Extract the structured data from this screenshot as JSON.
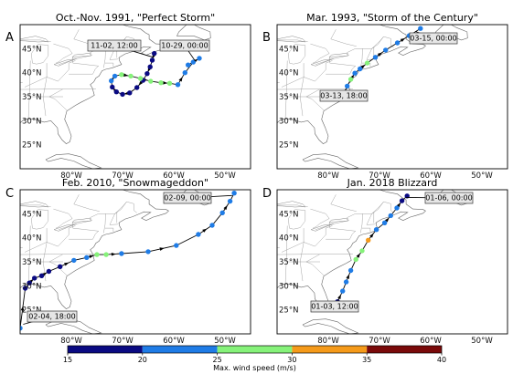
{
  "figure": {
    "colorbar": {
      "label": "Max. wind speed (m/s)",
      "ticks": [
        "15",
        "20",
        "25",
        "30",
        "35",
        "40"
      ],
      "bins": [
        {
          "range": [
            15,
            20
          ],
          "color": "#0a0a82"
        },
        {
          "range": [
            20,
            25
          ],
          "color": "#1f7ce6"
        },
        {
          "range": [
            25,
            30
          ],
          "color": "#86f27a"
        },
        {
          "range": [
            30,
            35
          ],
          "color": "#f59a1a"
        },
        {
          "range": [
            35,
            40
          ],
          "color": "#7a0a0a"
        }
      ]
    },
    "axes": {
      "x_ticks": [
        "80°W",
        "70°W",
        "60°W",
        "50°W"
      ],
      "y_ticks": [
        "45°N",
        "40°N",
        "35°N",
        "30°N",
        "25°N"
      ]
    }
  },
  "chart_data": [
    {
      "type": "scatter",
      "panel": "A",
      "title": "Oct.-Nov. 1991, \"Perfect Storm\"",
      "xlim": [
        -90,
        -45
      ],
      "ylim": [
        20,
        50
      ],
      "annotations": [
        "11-02, 12:00",
        "10-29, 00:00"
      ],
      "series": [
        {
          "lon": [
            -63.8,
            -64.2,
            -64.6,
            -65.2,
            -66.0,
            -67.2,
            -68.6,
            -70.0,
            -71.2,
            -72.0,
            -72.2,
            -71.5,
            -70.2,
            -68.4,
            -66.5,
            -64.5,
            -62.5,
            -60.8,
            -59.2,
            -57.8,
            -56.2,
            -55.0,
            -57.2
          ],
          "lat": [
            44.0,
            42.6,
            41.2,
            39.8,
            38.4,
            36.9,
            35.8,
            35.5,
            36.0,
            37.0,
            38.3,
            39.3,
            39.6,
            39.3,
            38.8,
            38.2,
            37.9,
            37.8,
            37.5,
            40.0,
            42.2,
            43.0,
            41.6
          ],
          "wind": [
            17,
            17,
            17,
            17,
            17,
            17,
            17,
            17,
            17,
            17,
            22,
            22,
            27,
            27,
            27,
            27,
            27,
            27,
            22,
            22,
            22,
            22,
            22
          ]
        }
      ]
    },
    {
      "type": "scatter",
      "panel": "B",
      "title": "Mar. 1993, \"Storm of the Century\"",
      "xlim": [
        -90,
        -45
      ],
      "ylim": [
        20,
        50
      ],
      "annotations": [
        "03-15, 00:00",
        "03-13, 18:00"
      ],
      "series": [
        {
          "lon": [
            -77.0,
            -76.3,
            -75.6,
            -74.8,
            -73.8,
            -72.4,
            -70.8,
            -68.8,
            -66.5,
            -64.2,
            -62.0
          ],
          "lat": [
            35.5,
            37.2,
            38.6,
            39.9,
            40.8,
            42.0,
            43.2,
            44.7,
            46.2,
            47.7,
            49.2
          ],
          "wind": [
            27,
            22,
            27,
            22,
            22,
            27,
            22,
            22,
            22,
            22,
            22
          ]
        }
      ]
    },
    {
      "type": "scatter",
      "panel": "C",
      "title": "Feb. 2010, \"Snowmageddon\"",
      "xlim": [
        -90,
        -45
      ],
      "ylim": [
        20,
        50
      ],
      "annotations": [
        "02-09, 00:00",
        "02-04, 18:00"
      ],
      "series": [
        {
          "lon": [
            -90.0,
            -89.0,
            -88.2,
            -87.2,
            -85.8,
            -84.4,
            -82.2,
            -79.5,
            -77.0,
            -75.0,
            -73.2,
            -70.2,
            -65.0,
            -59.5,
            -55.2,
            -52.5,
            -50.5,
            -49.0,
            -48.2
          ],
          "lat": [
            21.2,
            29.5,
            30.6,
            31.6,
            32.1,
            33.0,
            34.0,
            35.3,
            35.9,
            36.5,
            36.5,
            36.7,
            37.1,
            38.4,
            40.7,
            42.6,
            45.2,
            47.6,
            49.3
          ],
          "wind": [
            22,
            17,
            17,
            17,
            17,
            17,
            17,
            22,
            22,
            27,
            27,
            22,
            22,
            22,
            22,
            22,
            22,
            22,
            22
          ]
        }
      ]
    },
    {
      "type": "scatter",
      "panel": "D",
      "title": "Jan. 2018 Blizzard",
      "xlim": [
        -90,
        -45
      ],
      "ylim": [
        20,
        50
      ],
      "annotations": [
        "01-06, 00:00",
        "01-03, 12:00"
      ],
      "series": [
        {
          "lon": [
            -78.2,
            -77.2,
            -76.5,
            -75.6,
            -74.6,
            -73.4,
            -72.2,
            -70.6,
            -69.0,
            -67.8,
            -66.6,
            -65.6,
            -64.6
          ],
          "lat": [
            26.7,
            28.9,
            30.8,
            33.2,
            35.5,
            37.3,
            39.5,
            41.7,
            43.1,
            44.6,
            46.2,
            47.7,
            48.7
          ],
          "wind": [
            17,
            22,
            22,
            22,
            27,
            27,
            32,
            22,
            22,
            22,
            22,
            17,
            17
          ]
        }
      ]
    }
  ]
}
